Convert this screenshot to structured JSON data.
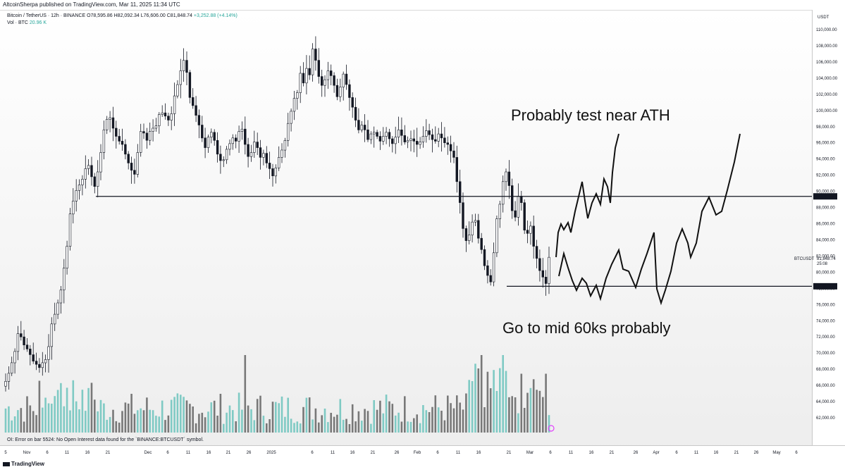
{
  "published": "AltcoinSherpa published on TradingView.com, Mar 11, 2025 11:34 UTC",
  "legend": {
    "symbol_line": "Bitcoin / TetherUS · 12h · BINANCE",
    "ohlc": "O78,595.86  H82,092.34  L76,606.00  C81,848.74",
    "change": "+3,252.88 (+4.14%)",
    "vol_label": "Vol · BTC",
    "vol_value": "20.96 K"
  },
  "currency": "USDT",
  "oi_error": "OI: Error on bar 5524: No Open Interest data found for the `BINANCE:BTCUSDT` symbol.",
  "footer": "TradingView",
  "colors": {
    "up": "#26a69a",
    "down": "#131722",
    "vol_up": "#7fcac4",
    "vol_down": "#787878",
    "level_label_bg": "#131722",
    "marker": "#e040fb"
  },
  "price_tag": {
    "symbol": "BTCUSDT",
    "price": "81,848.74",
    "countdown": "25:08"
  },
  "chart_data": {
    "type": "candlestick",
    "ylim": [
      60000,
      111500
    ],
    "y_ticks": [
      "62,000.00",
      "64,000.00",
      "66,000.00",
      "68,000.00",
      "70,000.00",
      "72,000.00",
      "74,000.00",
      "76,000.00",
      "78,000.00",
      "80,000.00",
      "82,000.00",
      "84,000.00",
      "86,000.00",
      "88,000.00",
      "90,000.00",
      "92,000.00",
      "94,000.00",
      "96,000.00",
      "98,000.00",
      "100,000.00",
      "102,000.00",
      "104,000.00",
      "106,000.00",
      "108,000.00",
      "110,000.00"
    ],
    "x_ticks": [
      "5",
      "Nov",
      "6",
      "11",
      "16",
      "21",
      "Dec",
      "6",
      "11",
      "16",
      "21",
      "26",
      "2025",
      "6",
      "11",
      "16",
      "21",
      "26",
      "Feb",
      "6",
      "11",
      "16",
      "21",
      "Mar",
      "6",
      "11",
      "16",
      "21",
      "26",
      "Apr",
      "6",
      "11",
      "16",
      "21",
      "26",
      "May",
      "6",
      "11"
    ],
    "horizontal_levels": [
      {
        "price": 89376.9,
        "label": "89,376.90"
      },
      {
        "price": 78258.52,
        "label": "78,258.52"
      }
    ],
    "annotations": [
      "Probably test near ATH",
      "Go to mid 60ks probably"
    ],
    "price_path_close": [
      66500,
      67500,
      68800,
      70200,
      72400,
      72000,
      71000,
      70500,
      69800,
      69000,
      68600,
      68200,
      68800,
      69200,
      70800,
      73600,
      74800,
      76200,
      77800,
      80500,
      83200,
      87200,
      88800,
      90100,
      90800,
      91500,
      92800,
      93200,
      91800,
      90600,
      92400,
      94800,
      97600,
      98900,
      99100,
      97800,
      96800,
      96200,
      95800,
      94600,
      93500,
      92600,
      92100,
      94800,
      97400,
      97200,
      96300,
      97400,
      97800,
      98100,
      99500,
      99700,
      99300,
      98800,
      99600,
      101800,
      103200,
      104900,
      106200,
      104700,
      101600,
      100600,
      99400,
      98200,
      96600,
      95400,
      96700,
      97300,
      96300,
      94600,
      93800,
      93900,
      95200,
      95900,
      96600,
      96200,
      97400,
      97700,
      95800,
      94300,
      94800,
      96100,
      95400,
      94200,
      94700,
      93500,
      92800,
      91900,
      92900,
      94200,
      95100,
      96300,
      98400,
      99900,
      101500,
      102200,
      104600,
      103400,
      105200,
      104400,
      107600,
      106200,
      104200,
      103100,
      103800,
      104900,
      104300,
      103100,
      101700,
      102900,
      104500,
      103200,
      101600,
      100400,
      98800,
      97600,
      98200,
      97600,
      96400,
      97100,
      97300,
      96800,
      96200,
      96800,
      97300,
      96500,
      95900,
      96700,
      97600,
      96900,
      96100,
      96300,
      96500,
      96200,
      95800,
      96100,
      96800,
      97500,
      97000,
      96400,
      96200,
      97100,
      96600,
      96000,
      95800,
      95000,
      94200,
      91200,
      88600,
      85400,
      83900,
      84600,
      86200,
      86400,
      84200,
      82800,
      80800,
      79600,
      78800,
      82400,
      86600,
      88400,
      91200,
      92400,
      90700,
      87600,
      86800,
      89400,
      88600,
      85200,
      84800,
      85700,
      83200,
      81700,
      80200,
      79400,
      78600,
      81848
    ]
  }
}
